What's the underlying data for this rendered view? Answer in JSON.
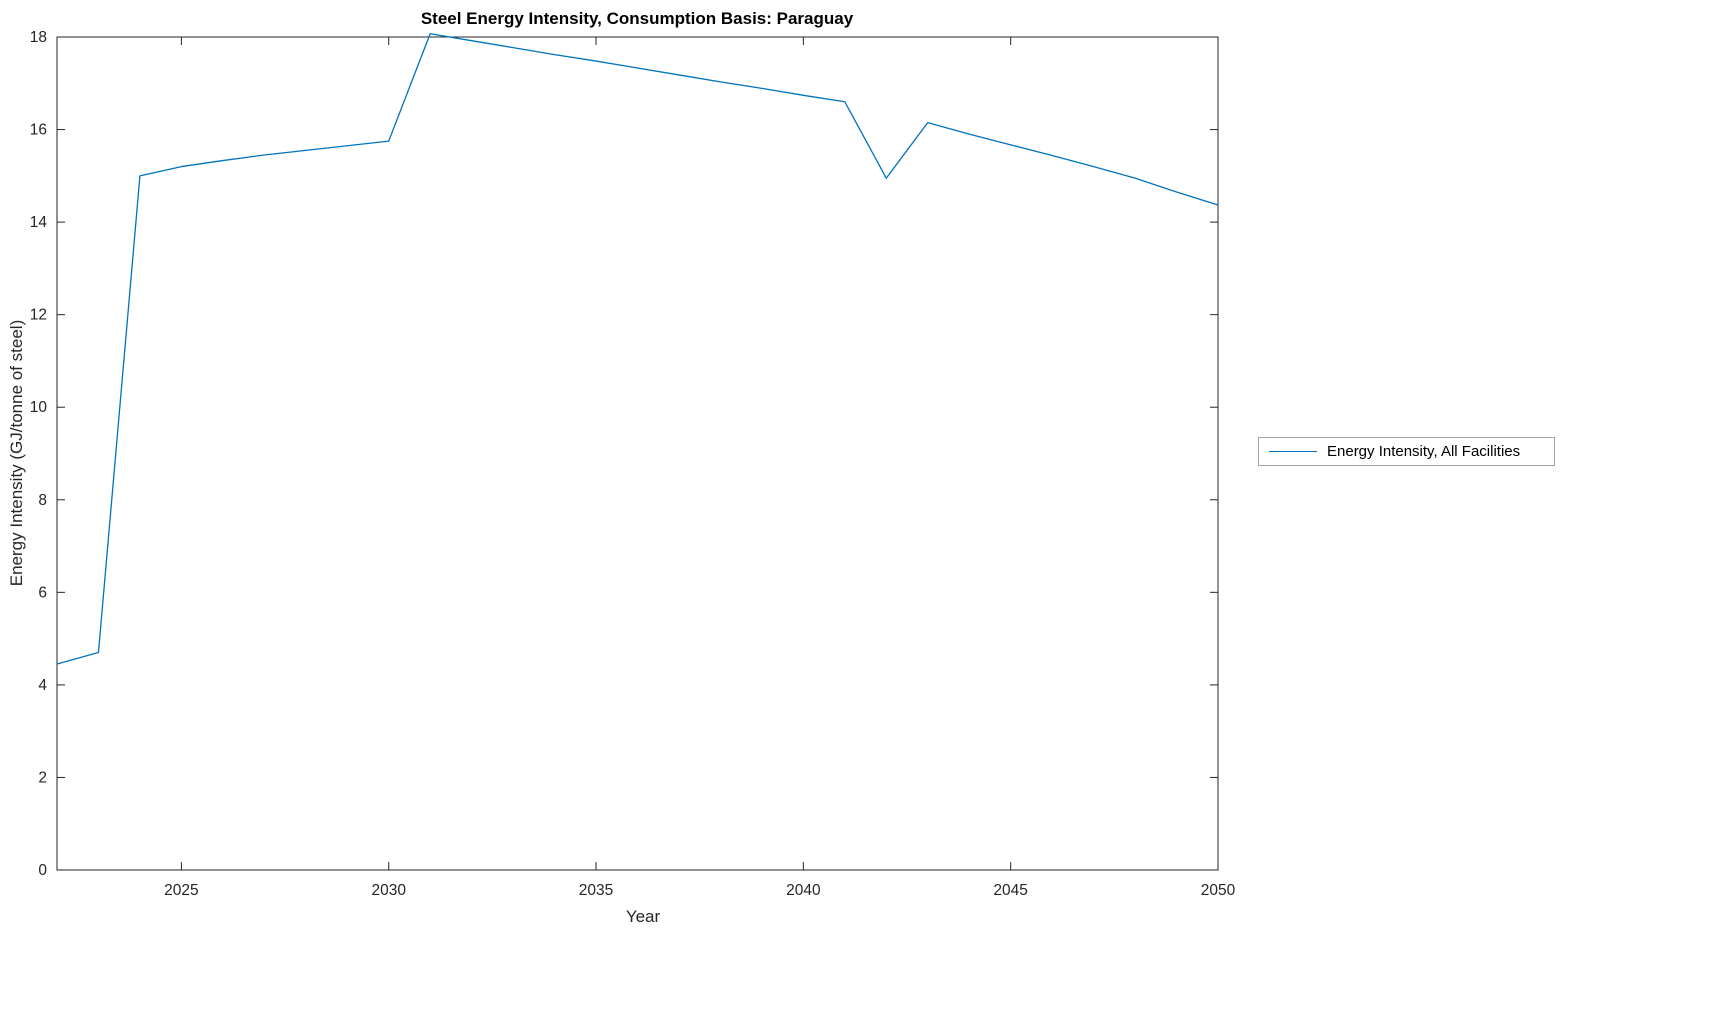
{
  "chart_data": {
    "type": "line",
    "title": "Steel Energy Intensity, Consumption Basis: Paraguay",
    "xlabel": "Year",
    "ylabel": "Energy Intensity (GJ/tonne of steel)",
    "xlim": [
      2022,
      2050
    ],
    "ylim": [
      0,
      18
    ],
    "xticks": [
      2025,
      2030,
      2035,
      2040,
      2045,
      2050
    ],
    "yticks": [
      0,
      2,
      4,
      6,
      8,
      10,
      12,
      14,
      16,
      18
    ],
    "grid": false,
    "legend_position": "right-outside",
    "axis_color": "#262626",
    "series": [
      {
        "name": "Energy Intensity, All Facilities",
        "color": "#0072bd",
        "x": [
          2022,
          2023,
          2024,
          2025,
          2026,
          2027,
          2028,
          2029,
          2030,
          2031,
          2032,
          2033,
          2034,
          2035,
          2036,
          2037,
          2038,
          2039,
          2040,
          2041,
          2042,
          2043,
          2044,
          2045,
          2046,
          2047,
          2048,
          2049,
          2050
        ],
        "values": [
          4.45,
          4.7,
          15.0,
          15.2,
          15.33,
          15.45,
          15.55,
          15.65,
          15.75,
          18.07,
          17.92,
          17.77,
          17.62,
          17.48,
          17.33,
          17.18,
          17.03,
          16.89,
          16.74,
          16.6,
          14.95,
          16.15,
          15.9,
          15.67,
          15.44,
          15.2,
          14.95,
          14.65,
          14.37
        ]
      }
    ]
  },
  "legend": {
    "entries": [
      {
        "label": "Energy Intensity, All Facilities"
      }
    ]
  }
}
